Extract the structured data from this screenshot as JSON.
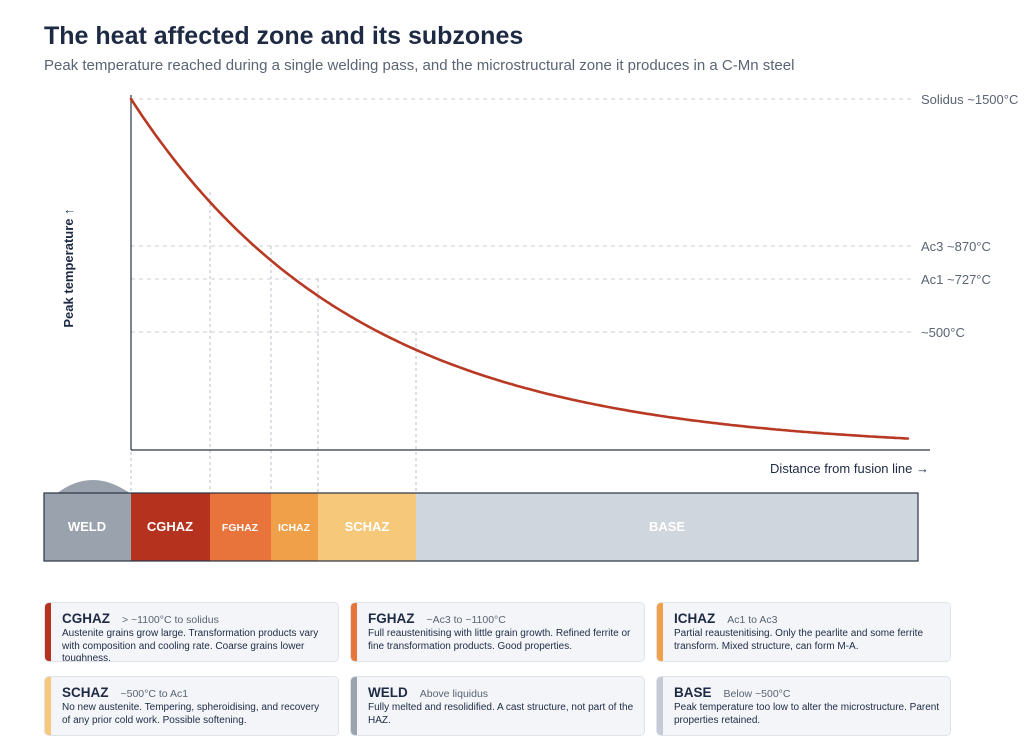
{
  "title": "The heat affected zone and its subzones",
  "subtitle": "Peak temperature reached during a single welding pass, and the microstructural zone it produces in a C-Mn steel",
  "axes": {
    "y_label": "Peak temperature ↑",
    "x_label": "Distance from fusion line →"
  },
  "thresholds": [
    {
      "label": "Solidus ~1500°C",
      "temp": 1500
    },
    {
      "label": "Ac3 ~870°C",
      "temp": 870
    },
    {
      "label": "Ac1 ~727°C",
      "temp": 727
    },
    {
      "label": "~500°C",
      "temp": 500
    }
  ],
  "zones": [
    {
      "id": "weld",
      "label": "WELD",
      "color": "#9aa3ad"
    },
    {
      "id": "cghaz",
      "label": "CGHAZ",
      "color": "#b5321f"
    },
    {
      "id": "fghaz",
      "label": "FGHAZ",
      "color": "#e8743c"
    },
    {
      "id": "ichaz",
      "label": "ICHAZ",
      "color": "#efa048"
    },
    {
      "id": "schaz",
      "label": "SCHAZ",
      "color": "#f5c87a"
    },
    {
      "id": "base",
      "label": "BASE",
      "color": "#d0d6de"
    }
  ],
  "cards": [
    {
      "name": "CGHAZ",
      "range": "> ~1100°C to solidus",
      "desc": "Austenite grains grow large. Transformation products vary with composition and cooling rate. Coarse grains lower toughness.",
      "accent": "#b5321f"
    },
    {
      "name": "FGHAZ",
      "range": "~Ac3 to ~1100°C",
      "desc": "Full reaustenitising with little grain growth. Refined ferrite or fine transformation products. Good properties.",
      "accent": "#e8743c"
    },
    {
      "name": "ICHAZ",
      "range": "Ac1 to Ac3",
      "desc": "Partial reaustenitising. Only the pearlite and some ferrite transform. Mixed structure, can form M-A.",
      "accent": "#efa048"
    },
    {
      "name": "SCHAZ",
      "range": "~500°C to Ac1",
      "desc": "No new austenite. Tempering, spheroidising, and recovery of any prior cold work. Possible softening.",
      "accent": "#f5c87a"
    },
    {
      "name": "WELD",
      "range": "Above liquidus",
      "desc": "Fully melted and resolidified. A cast structure, not part of the HAZ.",
      "accent": "#9aa3ad"
    },
    {
      "name": "BASE",
      "range": "Below ~500°C",
      "desc": "Peak temperature too low to alter the microstructure. Parent properties retained.",
      "accent": "#c4cbd4"
    }
  ],
  "colors": {
    "curve": "#b83a24",
    "text": "#1e2a44",
    "muted": "#5a6473",
    "grid": "#c9ced6",
    "axis": "#2a3344"
  }
}
